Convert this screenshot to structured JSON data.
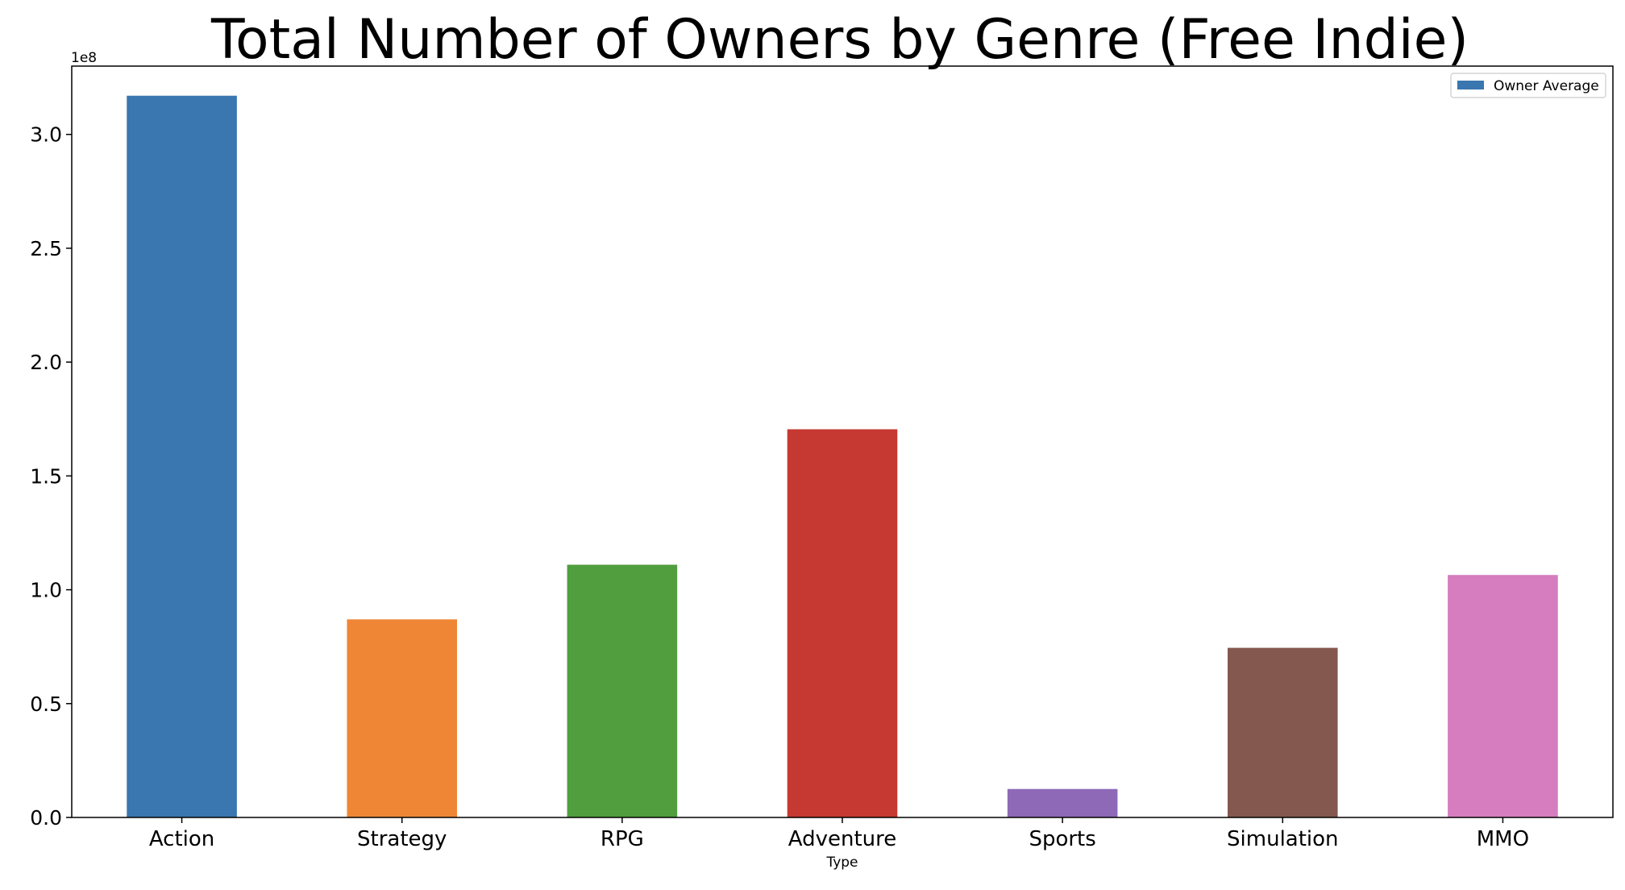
{
  "chart_data": {
    "type": "bar",
    "title": "Total Number of Owners by Genre (Free Indie)",
    "xlabel": "Type",
    "ylabel": "",
    "offset_label": "1e8",
    "categories": [
      "Action",
      "Strategy",
      "RPG",
      "Adventure",
      "Sports",
      "Simulation",
      "MMO"
    ],
    "series": [
      {
        "name": "Owner Average",
        "values": [
          317000000,
          87000000,
          111000000,
          170500000,
          12500000,
          74500000,
          106500000
        ]
      }
    ],
    "bar_colors": [
      "#3a76af",
      "#ef8636",
      "#519e3e",
      "#c53932",
      "#8d69b8",
      "#84584e",
      "#d57dbf"
    ],
    "legend_color": "#3a76af",
    "ylim": [
      0,
      330000000
    ],
    "yticks": [
      0,
      50000000,
      100000000,
      150000000,
      200000000,
      250000000,
      300000000
    ],
    "ytick_labels": [
      "0.0",
      "0.5",
      "1.0",
      "1.5",
      "2.0",
      "2.5",
      "3.0"
    ],
    "legend_position": "top-right",
    "grid": false
  }
}
